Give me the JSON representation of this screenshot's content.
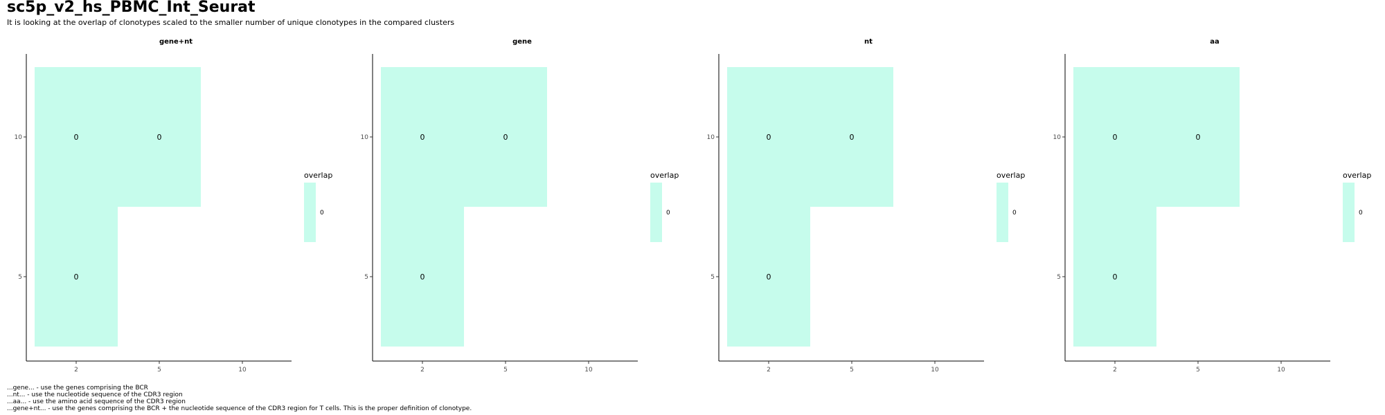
{
  "header": {
    "title": "sc5p_v2_hs_PBMC_Int_Seurat",
    "subtitle": "It is looking at the overlap of clonotypes scaled to the smaller number of unique clonotypes in the compared clusters"
  },
  "footer": {
    "lines": [
      "...gene... - use the genes comprising the BCR",
      "...nt... - use the nucleotide sequence of the CDR3 region",
      "...aa... - use the amino acid sequence of the CDR3 region",
      "...gene+nt... - use the genes comprising the BCR + the nucleotide sequence of the CDR3 region for T cells. This is the proper definition of clonotype."
    ]
  },
  "colors": {
    "fill": "#c6fcec",
    "axis": "#000000",
    "tick_text": "#4d4d4d"
  },
  "chart_data": [
    {
      "type": "heatmap",
      "title": "gene+nt",
      "x_categories": [
        "2",
        "5",
        "10"
      ],
      "y_categories": [
        "5",
        "10"
      ],
      "cells": [
        {
          "x": "2",
          "y": "10",
          "value": 0
        },
        {
          "x": "5",
          "y": "10",
          "value": 0
        },
        {
          "x": "2",
          "y": "5",
          "value": 0
        }
      ],
      "legend": {
        "title": "overlap",
        "labels": [
          "0"
        ],
        "placement": "right"
      },
      "grid": false
    },
    {
      "type": "heatmap",
      "title": "gene",
      "x_categories": [
        "2",
        "5",
        "10"
      ],
      "y_categories": [
        "5",
        "10"
      ],
      "cells": [
        {
          "x": "2",
          "y": "10",
          "value": 0
        },
        {
          "x": "5",
          "y": "10",
          "value": 0
        },
        {
          "x": "2",
          "y": "5",
          "value": 0
        }
      ],
      "legend": {
        "title": "overlap",
        "labels": [
          "0"
        ],
        "placement": "right"
      },
      "grid": false
    },
    {
      "type": "heatmap",
      "title": "nt",
      "x_categories": [
        "2",
        "5",
        "10"
      ],
      "y_categories": [
        "5",
        "10"
      ],
      "cells": [
        {
          "x": "2",
          "y": "10",
          "value": 0
        },
        {
          "x": "5",
          "y": "10",
          "value": 0
        },
        {
          "x": "2",
          "y": "5",
          "value": 0
        }
      ],
      "legend": {
        "title": "overlap",
        "labels": [
          "0"
        ],
        "placement": "right"
      },
      "grid": false
    },
    {
      "type": "heatmap",
      "title": "aa",
      "x_categories": [
        "2",
        "5",
        "10"
      ],
      "y_categories": [
        "5",
        "10"
      ],
      "cells": [
        {
          "x": "2",
          "y": "10",
          "value": 0
        },
        {
          "x": "5",
          "y": "10",
          "value": 0
        },
        {
          "x": "2",
          "y": "5",
          "value": 0
        }
      ],
      "legend": {
        "title": "overlap",
        "labels": [
          "0"
        ],
        "placement": "right"
      },
      "grid": false
    }
  ]
}
